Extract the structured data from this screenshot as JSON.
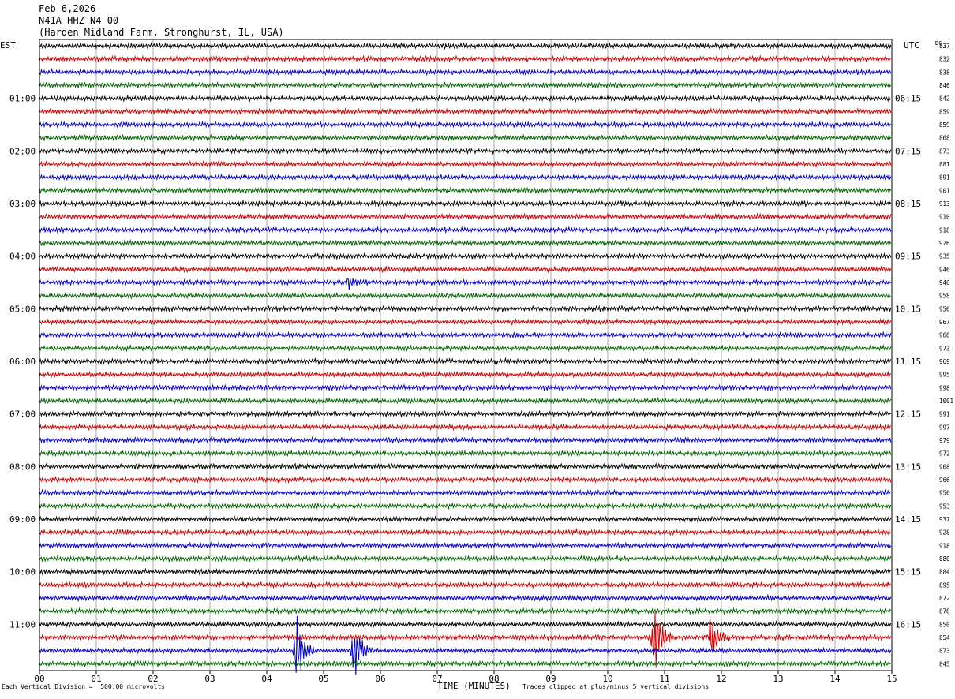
{
  "header": {
    "date": "Feb 6,2026",
    "station": "N41A HHZ N4 00",
    "location": "(Harden Midland Farm, Stronghurst, IL, USA)"
  },
  "left_axis_label": "EST",
  "right_axis_label": "UTC",
  "dc_label": "DC",
  "chart_data": {
    "type": "line",
    "title": "Feb 6,2026 N41A HHZ N4 00 (Harden Midland Farm, Stronghurst, IL, USA)",
    "xlabel": "TIME (MINUTES)",
    "x_ticks": [
      "00",
      "01",
      "02",
      "03",
      "04",
      "05",
      "06",
      "07",
      "08",
      "09",
      "10",
      "11",
      "12",
      "13",
      "14",
      "15"
    ],
    "xlim": [
      0,
      15
    ],
    "trace_colors": [
      "#000000",
      "#cc0000",
      "#0000cc",
      "#006600"
    ],
    "est_hour_labels": [
      "01:00",
      "02:00",
      "03:00",
      "04:00",
      "05:00",
      "06:00",
      "07:00",
      "08:00",
      "09:00",
      "10:00",
      "11:00"
    ],
    "utc_hour_labels": [
      "06:15",
      "07:15",
      "08:15",
      "09:15",
      "10:15",
      "11:15",
      "12:15",
      "13:15",
      "14:15",
      "15:15",
      "16:15"
    ],
    "dc_offsets": [
      837,
      832,
      838,
      846,
      842,
      859,
      859,
      868,
      873,
      881,
      891,
      901,
      913,
      910,
      918,
      926,
      935,
      946,
      946,
      958,
      956,
      967,
      968,
      973,
      969,
      995,
      998,
      1001,
      991,
      997,
      979,
      972,
      968,
      966,
      956,
      953,
      937,
      928,
      918,
      880,
      884,
      895,
      872,
      878,
      850,
      854,
      873,
      845
    ],
    "events": [
      {
        "trace_row": 46,
        "minute": 4.5,
        "amplitude": "large"
      },
      {
        "trace_row": 46,
        "minute": 5.5,
        "amplitude": "large"
      },
      {
        "trace_row": 45,
        "minute": 10.8,
        "amplitude": "large"
      },
      {
        "trace_row": 45,
        "minute": 11.8,
        "amplitude": "medium"
      },
      {
        "trace_row": 18,
        "minute": 5.4,
        "amplitude": "small"
      }
    ]
  },
  "footer": {
    "scale_note": "Each Vertical Division =  500.00 microvolts",
    "clip_note": "Traces clipped at plus/minus 5 vertical divisions"
  }
}
